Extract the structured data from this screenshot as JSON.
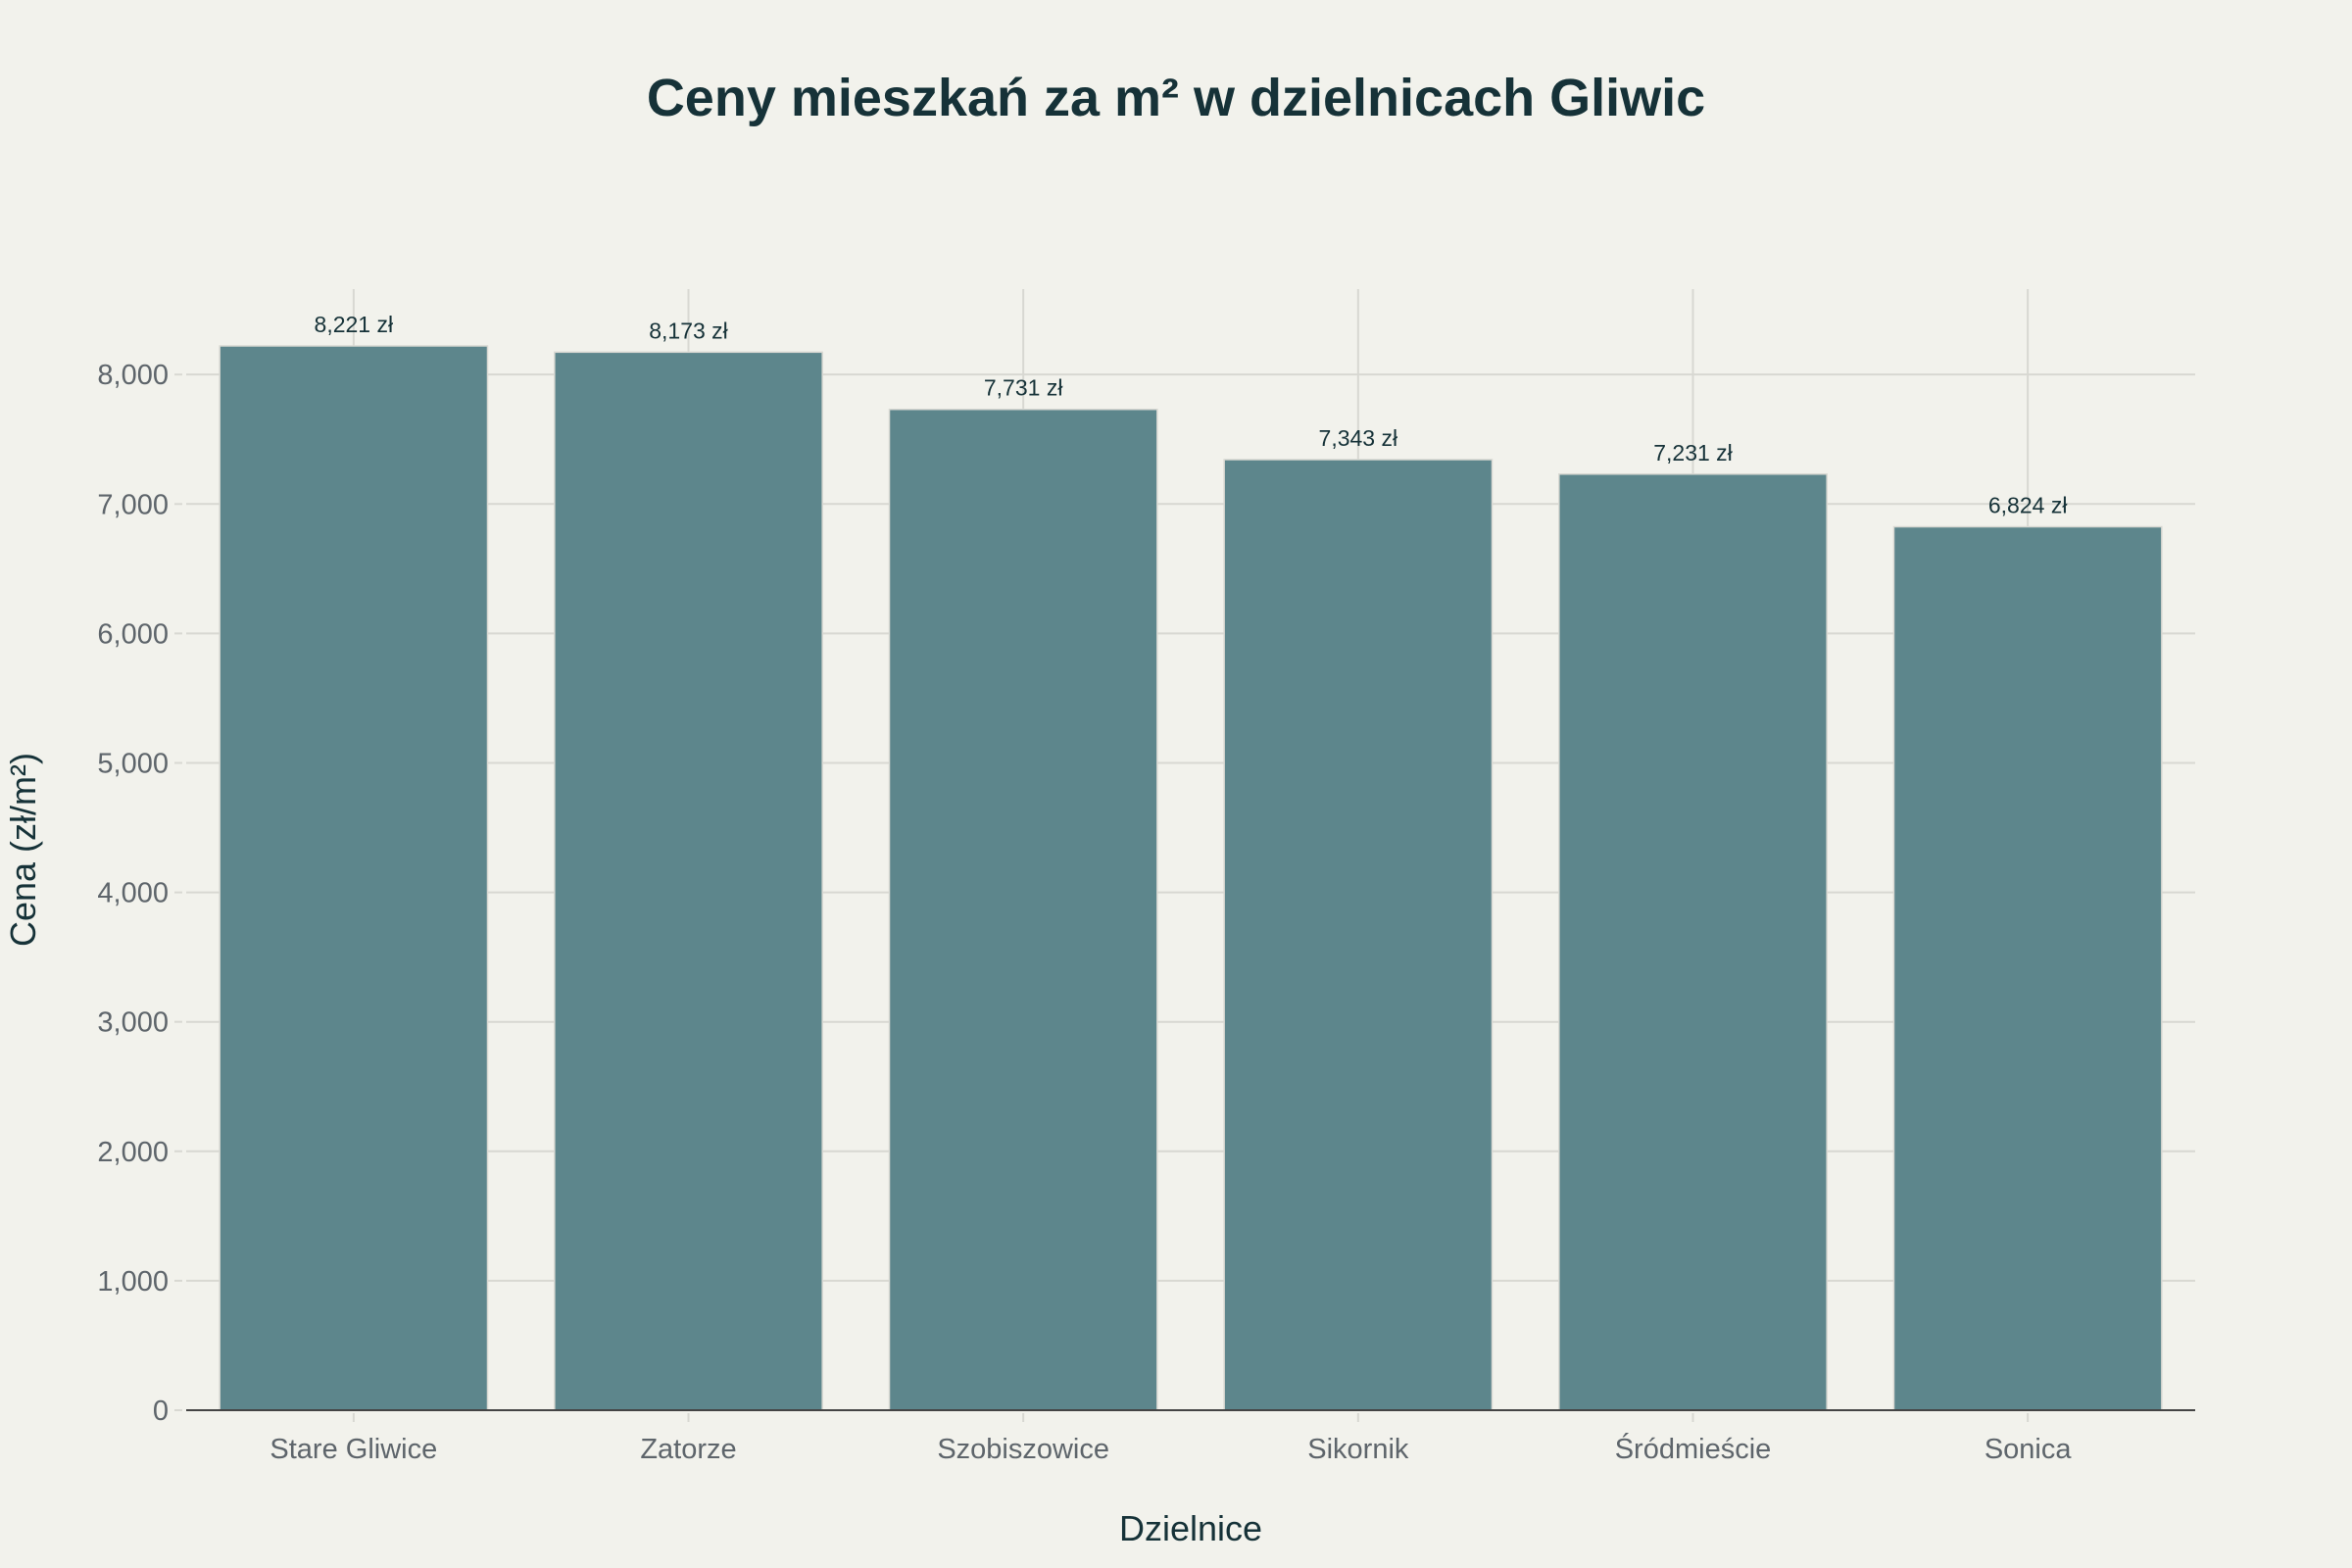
{
  "chart_data": {
    "type": "bar",
    "title": "Ceny mieszkań za m² w dzielnicach Gliwic",
    "xlabel": "Dzielnice",
    "ylabel": "Cena (zł/m²)",
    "categories": [
      "Stare Gliwice",
      "Zatorze",
      "Szobiszowice",
      "Sikornik",
      "Śródmieście",
      "Sonica"
    ],
    "values": [
      8221,
      8173,
      7731,
      7343,
      7231,
      6824
    ],
    "data_labels": [
      "8,221 zł",
      "8,173 zł",
      "7,731 zł",
      "7,343 zł",
      "7,231 zł",
      "6,824 zł"
    ],
    "yticks": [
      0,
      1000,
      2000,
      3000,
      4000,
      5000,
      6000,
      7000,
      8000
    ],
    "ytick_labels": [
      "0",
      "1,000",
      "2,000",
      "3,000",
      "4,000",
      "5,000",
      "6,000",
      "7,000",
      "8,000"
    ],
    "ylim": [
      0,
      8660
    ],
    "grid": true,
    "bar_color": "#5d868c",
    "background_color": "#f2f2ec"
  }
}
